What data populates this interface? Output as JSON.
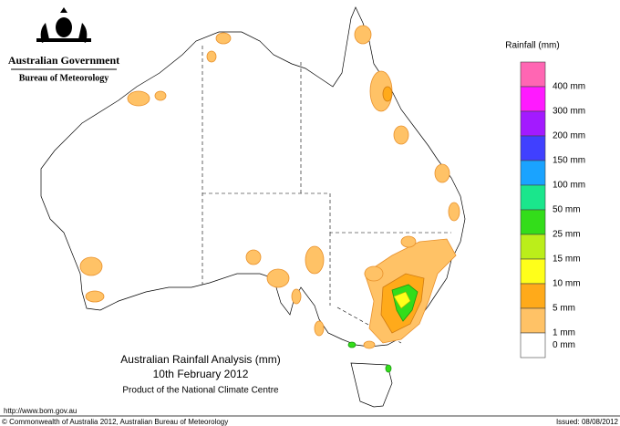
{
  "header": {
    "agency": "Australian Government",
    "bureau": "Bureau of Meteorology"
  },
  "legend": {
    "title": "Rainfall (mm)",
    "items": [
      {
        "label": "400 mm",
        "color": "#ff66b3"
      },
      {
        "label": "300 mm",
        "color": "#ff1aff"
      },
      {
        "label": "200 mm",
        "color": "#a31aff"
      },
      {
        "label": "150 mm",
        "color": "#4040ff"
      },
      {
        "label": "100 mm",
        "color": "#1aa3ff"
      },
      {
        "label": "50 mm",
        "color": "#1ae68c"
      },
      {
        "label": "25 mm",
        "color": "#33dd1a"
      },
      {
        "label": "15 mm",
        "color": "#bbee1a"
      },
      {
        "label": "10 mm",
        "color": "#ffff1a"
      },
      {
        "label": "5 mm",
        "color": "#ffaa1a"
      },
      {
        "label": "1 mm",
        "color": "#ffc266"
      },
      {
        "label": "0 mm",
        "color": "#ffffff"
      }
    ]
  },
  "map": {
    "title": "Australian Rainfall Analysis (mm)",
    "date": "10th February 2012",
    "credit": "Product of the National Climate Centre"
  },
  "footer": {
    "url": "http://www.bom.gov.au",
    "copyright": "© Commonwealth of Australia 2012, Australian Bureau of Meteorology",
    "issued": "Issued: 08/08/2012"
  }
}
